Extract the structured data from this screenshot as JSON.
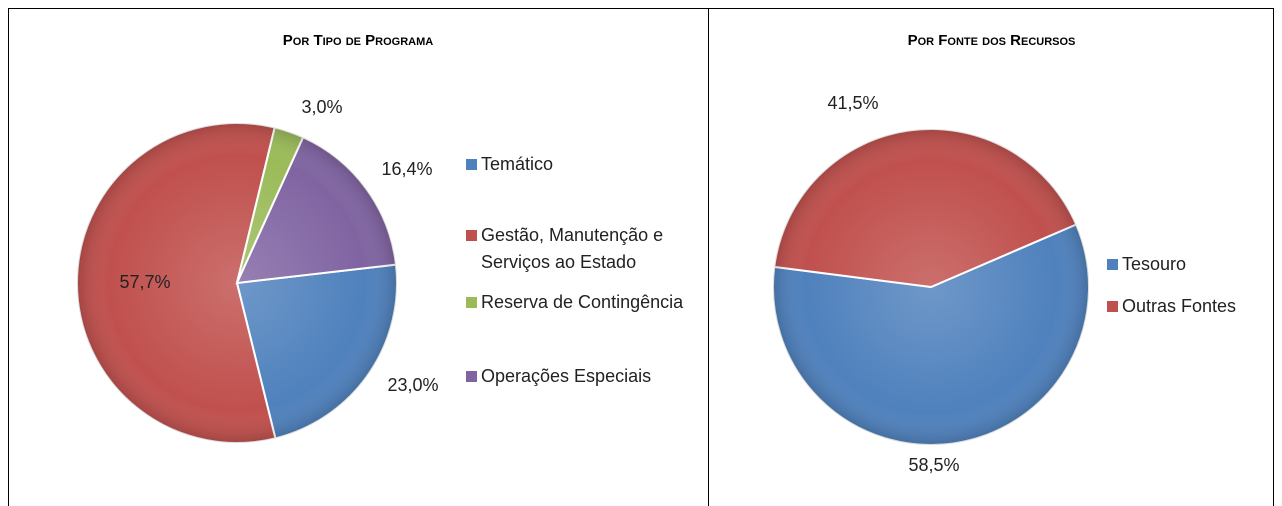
{
  "chart_data": [
    {
      "type": "pie",
      "title": "Por Tipo de Programa",
      "categories": [
        "Temático",
        "Gestão, Manutenção e Serviços ao Estado",
        "Reserva de Contingência",
        "Operações Especiais"
      ],
      "values": [
        23.0,
        57.7,
        3.0,
        16.4
      ],
      "value_labels": [
        "23,0%",
        "57,7%",
        "3,0%",
        "16,4%"
      ],
      "colors": [
        "#4f81bd",
        "#c0504d",
        "#9bbb59",
        "#8064a2"
      ]
    },
    {
      "type": "pie",
      "title": "Por Fonte dos Recursos",
      "categories": [
        "Tesouro",
        "Outras Fontes"
      ],
      "values": [
        58.5,
        41.5
      ],
      "value_labels": [
        "58,5%",
        "41,5%"
      ],
      "colors": [
        "#4f81bd",
        "#c0504d"
      ]
    }
  ]
}
